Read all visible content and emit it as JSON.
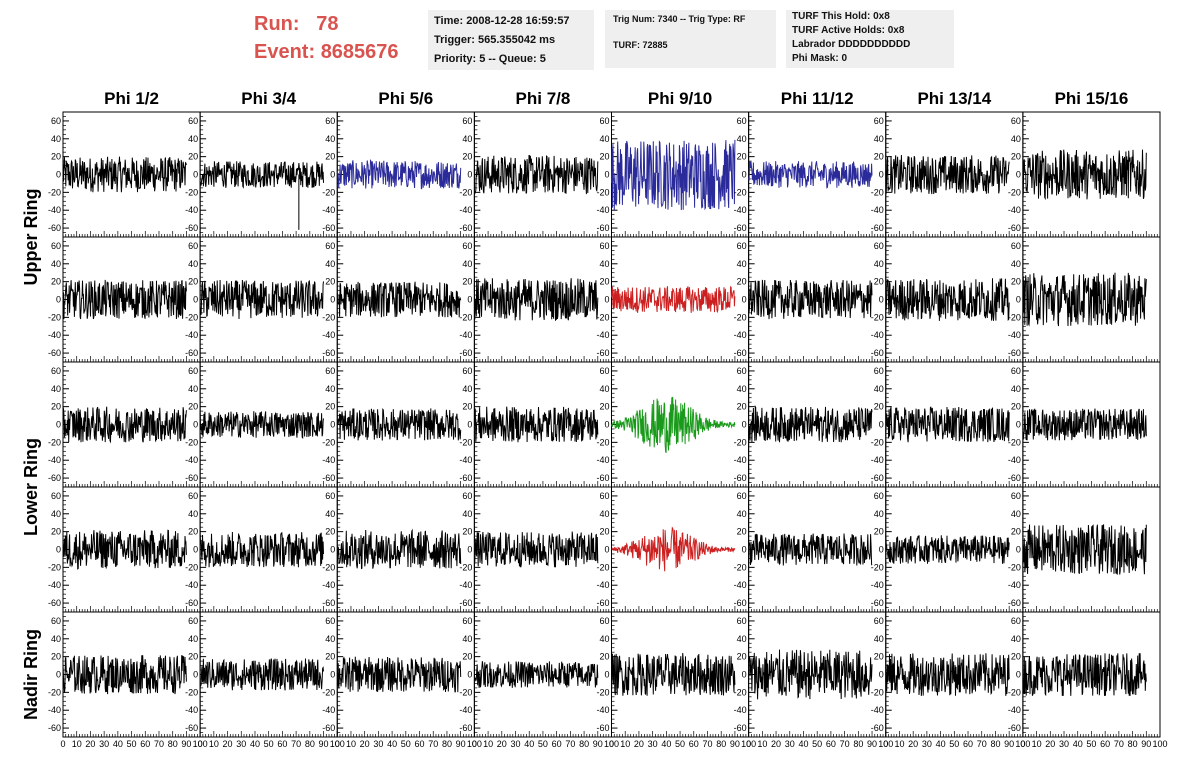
{
  "header": {
    "run_label": "Run:",
    "run_value": "78",
    "event_label": "Event:",
    "event_value": "8685676"
  },
  "info_boxes": {
    "time": "Time: 2008-12-28 16:59:57",
    "trigger": "Trigger: 565.355042 ms",
    "priority": "Priority: 5 -- Queue: 5",
    "trig_num": "Trig Num: 7340 -- Trig Type: RF",
    "turf": "TURF: 72885",
    "turf_hold": "TURF This Hold: 0x8",
    "turf_active": "TURF Active Holds: 0x8",
    "labrador": "Labrador DDDDDDDDDD",
    "phi_mask": "Phi Mask: 0"
  },
  "colors": {
    "header_red": "#d9534f",
    "trace_default": "#000000",
    "trace_blue": "#2a2a9a",
    "trace_red": "#cc2020",
    "trace_green": "#1a9a1a"
  },
  "chart_data": {
    "type": "line",
    "columns": [
      "Phi 1/2",
      "Phi 3/4",
      "Phi 5/6",
      "Phi 7/8",
      "Phi 9/10",
      "Phi 11/12",
      "Phi 13/14",
      "Phi 15/16"
    ],
    "rows": [
      "Upper Ring",
      "",
      "Lower Ring",
      "",
      "Nadir Ring"
    ],
    "ring_labels": [
      {
        "text": "Upper Ring",
        "spans_rows": [
          0,
          1
        ]
      },
      {
        "text": "Lower Ring",
        "spans_rows": [
          2,
          3
        ]
      },
      {
        "text": "Nadir Ring",
        "spans_rows": [
          4
        ]
      }
    ],
    "ylim": [
      -70,
      70
    ],
    "yticks": [
      -60,
      -40,
      -20,
      0,
      20,
      40,
      60
    ],
    "xlim": [
      0,
      100
    ],
    "xticks": [
      0,
      10,
      20,
      30,
      40,
      50,
      60,
      70,
      80,
      90,
      100
    ],
    "xtick_labels": [
      "0",
      "10",
      "20",
      "30",
      "40",
      "50",
      "60",
      "70",
      "80",
      "90",
      "100"
    ],
    "grid": false,
    "traces": [
      {
        "row": 0,
        "col": 0,
        "color": "black",
        "amplitude": 20,
        "burst": false
      },
      {
        "row": 0,
        "col": 1,
        "color": "black",
        "amplitude": 15,
        "burst": false,
        "spikes": [
          {
            "x": 72,
            "y": -62
          }
        ]
      },
      {
        "row": 0,
        "col": 2,
        "color": "blue",
        "amplitude": 16,
        "burst": false
      },
      {
        "row": 0,
        "col": 3,
        "color": "black",
        "amplitude": 22,
        "burst": false
      },
      {
        "row": 0,
        "col": 4,
        "color": "blue",
        "amplitude": 40,
        "burst": false
      },
      {
        "row": 0,
        "col": 5,
        "color": "blue",
        "amplitude": 15,
        "burst": false
      },
      {
        "row": 0,
        "col": 6,
        "color": "black",
        "amplitude": 22,
        "burst": false
      },
      {
        "row": 0,
        "col": 7,
        "color": "black",
        "amplitude": 28,
        "burst": false
      },
      {
        "row": 1,
        "col": 0,
        "color": "black",
        "amplitude": 22,
        "burst": false
      },
      {
        "row": 1,
        "col": 1,
        "color": "black",
        "amplitude": 22,
        "burst": false
      },
      {
        "row": 1,
        "col": 2,
        "color": "black",
        "amplitude": 20,
        "burst": false
      },
      {
        "row": 1,
        "col": 3,
        "color": "black",
        "amplitude": 24,
        "burst": false
      },
      {
        "row": 1,
        "col": 4,
        "color": "red",
        "amplitude": 15,
        "burst": false
      },
      {
        "row": 1,
        "col": 5,
        "color": "black",
        "amplitude": 22,
        "burst": false
      },
      {
        "row": 1,
        "col": 6,
        "color": "black",
        "amplitude": 24,
        "burst": false
      },
      {
        "row": 1,
        "col": 7,
        "color": "black",
        "amplitude": 30,
        "burst": false
      },
      {
        "row": 2,
        "col": 0,
        "color": "black",
        "amplitude": 20,
        "burst": false
      },
      {
        "row": 2,
        "col": 1,
        "color": "black",
        "amplitude": 15,
        "burst": false
      },
      {
        "row": 2,
        "col": 2,
        "color": "black",
        "amplitude": 18,
        "burst": false
      },
      {
        "row": 2,
        "col": 3,
        "color": "black",
        "amplitude": 20,
        "burst": false
      },
      {
        "row": 2,
        "col": 4,
        "color": "green",
        "amplitude": 32,
        "burst": true
      },
      {
        "row": 2,
        "col": 5,
        "color": "black",
        "amplitude": 20,
        "burst": false
      },
      {
        "row": 2,
        "col": 6,
        "color": "black",
        "amplitude": 20,
        "burst": false
      },
      {
        "row": 2,
        "col": 7,
        "color": "black",
        "amplitude": 18,
        "burst": false
      },
      {
        "row": 3,
        "col": 0,
        "color": "black",
        "amplitude": 22,
        "burst": false
      },
      {
        "row": 3,
        "col": 1,
        "color": "black",
        "amplitude": 20,
        "burst": false
      },
      {
        "row": 3,
        "col": 2,
        "color": "black",
        "amplitude": 22,
        "burst": false
      },
      {
        "row": 3,
        "col": 3,
        "color": "black",
        "amplitude": 20,
        "burst": false
      },
      {
        "row": 3,
        "col": 4,
        "color": "red",
        "amplitude": 25,
        "burst": true
      },
      {
        "row": 3,
        "col": 5,
        "color": "black",
        "amplitude": 18,
        "burst": false
      },
      {
        "row": 3,
        "col": 6,
        "color": "black",
        "amplitude": 16,
        "burst": false
      },
      {
        "row": 3,
        "col": 7,
        "color": "black",
        "amplitude": 28,
        "burst": false
      },
      {
        "row": 4,
        "col": 0,
        "color": "black",
        "amplitude": 22,
        "burst": false
      },
      {
        "row": 4,
        "col": 1,
        "color": "black",
        "amplitude": 18,
        "burst": false
      },
      {
        "row": 4,
        "col": 2,
        "color": "black",
        "amplitude": 20,
        "burst": false
      },
      {
        "row": 4,
        "col": 3,
        "color": "black",
        "amplitude": 15,
        "burst": false
      },
      {
        "row": 4,
        "col": 4,
        "color": "black",
        "amplitude": 24,
        "burst": false
      },
      {
        "row": 4,
        "col": 5,
        "color": "black",
        "amplitude": 28,
        "burst": false
      },
      {
        "row": 4,
        "col": 6,
        "color": "black",
        "amplitude": 24,
        "burst": false
      },
      {
        "row": 4,
        "col": 7,
        "color": "black",
        "amplitude": 24,
        "burst": false
      }
    ]
  }
}
